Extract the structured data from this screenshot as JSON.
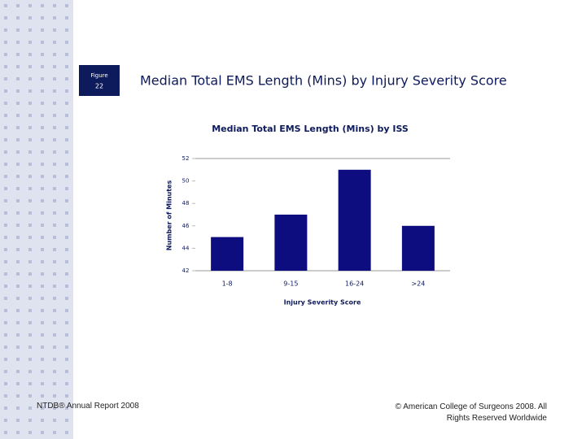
{
  "slide": {
    "figure_label": "Figure",
    "figure_number": "22",
    "heading": "Median Total EMS Length (Mins) by Injury Severity Score",
    "footer_left": "NTDB® Annual Report 2008",
    "footer_right": "© American College of Surgeons 2008. All Rights Reserved Worldwide"
  },
  "chart_data": {
    "type": "bar",
    "title": "Median Total EMS Length (Mins) by ISS",
    "x_label": "Injury Severity Score",
    "y_label": "Number of Minutes",
    "categories": [
      "1-8",
      "9-15",
      "16-24",
      ">24"
    ],
    "values": [
      45,
      47,
      51,
      46
    ],
    "color": "#0d0d80",
    "ylim": [
      42,
      52
    ],
    "yticks": [
      42,
      44,
      46,
      48,
      50,
      52
    ],
    "grid": false
  }
}
